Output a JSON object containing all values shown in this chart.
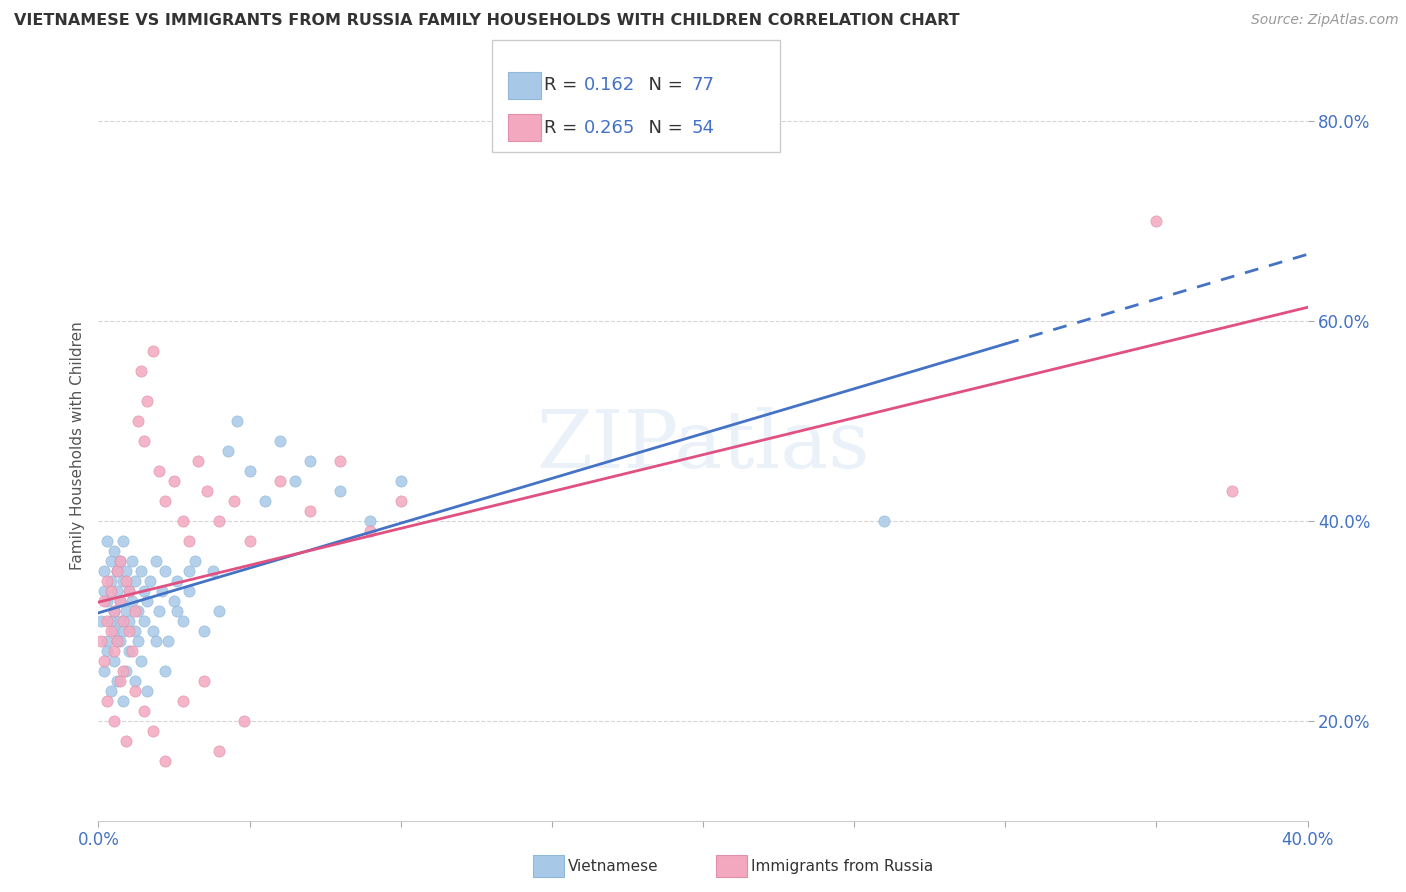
{
  "title": "VIETNAMESE VS IMMIGRANTS FROM RUSSIA FAMILY HOUSEHOLDS WITH CHILDREN CORRELATION CHART",
  "source": "Source: ZipAtlas.com",
  "ylabel": "Family Households with Children",
  "xlim": [
    0.0,
    0.4
  ],
  "ylim": [
    0.1,
    0.85
  ],
  "x_tick_positions": [
    0.0,
    0.05,
    0.1,
    0.15,
    0.2,
    0.25,
    0.3,
    0.35,
    0.4
  ],
  "x_tick_labels": [
    "0.0%",
    "",
    "",
    "",
    "",
    "",
    "",
    "",
    "40.0%"
  ],
  "y_tick_positions": [
    0.2,
    0.4,
    0.6,
    0.8
  ],
  "y_tick_labels": [
    "20.0%",
    "40.0%",
    "60.0%",
    "80.0%"
  ],
  "viet_color": "#a8c8e8",
  "russia_color": "#f4a8c0",
  "viet_line_color": "#4472c4",
  "russia_line_color": "#e05080",
  "watermark": "ZIPatlas",
  "R_viet": 0.162,
  "N_viet": 77,
  "R_russia": 0.265,
  "N_russia": 54,
  "viet_x": [
    0.001,
    0.002,
    0.002,
    0.003,
    0.003,
    0.003,
    0.004,
    0.004,
    0.004,
    0.005,
    0.005,
    0.005,
    0.006,
    0.006,
    0.006,
    0.007,
    0.007,
    0.007,
    0.008,
    0.008,
    0.008,
    0.009,
    0.009,
    0.01,
    0.01,
    0.011,
    0.011,
    0.012,
    0.012,
    0.013,
    0.013,
    0.014,
    0.015,
    0.015,
    0.016,
    0.017,
    0.018,
    0.019,
    0.02,
    0.021,
    0.022,
    0.023,
    0.025,
    0.026,
    0.028,
    0.03,
    0.032,
    0.035,
    0.038,
    0.04,
    0.043,
    0.046,
    0.05,
    0.055,
    0.06,
    0.065,
    0.07,
    0.08,
    0.09,
    0.1,
    0.002,
    0.003,
    0.004,
    0.005,
    0.006,
    0.007,
    0.008,
    0.009,
    0.01,
    0.012,
    0.014,
    0.016,
    0.019,
    0.022,
    0.026,
    0.03,
    0.26
  ],
  "viet_y": [
    0.3,
    0.33,
    0.35,
    0.28,
    0.32,
    0.38,
    0.36,
    0.3,
    0.34,
    0.31,
    0.37,
    0.29,
    0.35,
    0.28,
    0.33,
    0.32,
    0.36,
    0.3,
    0.29,
    0.34,
    0.38,
    0.31,
    0.35,
    0.3,
    0.33,
    0.32,
    0.36,
    0.29,
    0.34,
    0.31,
    0.28,
    0.35,
    0.33,
    0.3,
    0.32,
    0.34,
    0.29,
    0.36,
    0.31,
    0.33,
    0.35,
    0.28,
    0.32,
    0.34,
    0.3,
    0.33,
    0.36,
    0.29,
    0.35,
    0.31,
    0.47,
    0.5,
    0.45,
    0.42,
    0.48,
    0.44,
    0.46,
    0.43,
    0.4,
    0.44,
    0.25,
    0.27,
    0.23,
    0.26,
    0.24,
    0.28,
    0.22,
    0.25,
    0.27,
    0.24,
    0.26,
    0.23,
    0.28,
    0.25,
    0.31,
    0.35,
    0.4
  ],
  "russia_x": [
    0.001,
    0.002,
    0.002,
    0.003,
    0.003,
    0.004,
    0.004,
    0.005,
    0.005,
    0.006,
    0.006,
    0.007,
    0.007,
    0.008,
    0.008,
    0.009,
    0.01,
    0.01,
    0.011,
    0.012,
    0.013,
    0.014,
    0.015,
    0.016,
    0.018,
    0.02,
    0.022,
    0.025,
    0.028,
    0.03,
    0.033,
    0.036,
    0.04,
    0.045,
    0.05,
    0.06,
    0.07,
    0.08,
    0.09,
    0.1,
    0.003,
    0.005,
    0.007,
    0.009,
    0.012,
    0.015,
    0.018,
    0.022,
    0.028,
    0.035,
    0.04,
    0.048,
    0.35,
    0.375
  ],
  "russia_y": [
    0.28,
    0.32,
    0.26,
    0.3,
    0.34,
    0.29,
    0.33,
    0.27,
    0.31,
    0.35,
    0.28,
    0.32,
    0.36,
    0.3,
    0.25,
    0.34,
    0.29,
    0.33,
    0.27,
    0.31,
    0.5,
    0.55,
    0.48,
    0.52,
    0.57,
    0.45,
    0.42,
    0.44,
    0.4,
    0.38,
    0.46,
    0.43,
    0.4,
    0.42,
    0.38,
    0.44,
    0.41,
    0.46,
    0.39,
    0.42,
    0.22,
    0.2,
    0.24,
    0.18,
    0.23,
    0.21,
    0.19,
    0.16,
    0.22,
    0.24,
    0.17,
    0.2,
    0.7,
    0.43
  ]
}
